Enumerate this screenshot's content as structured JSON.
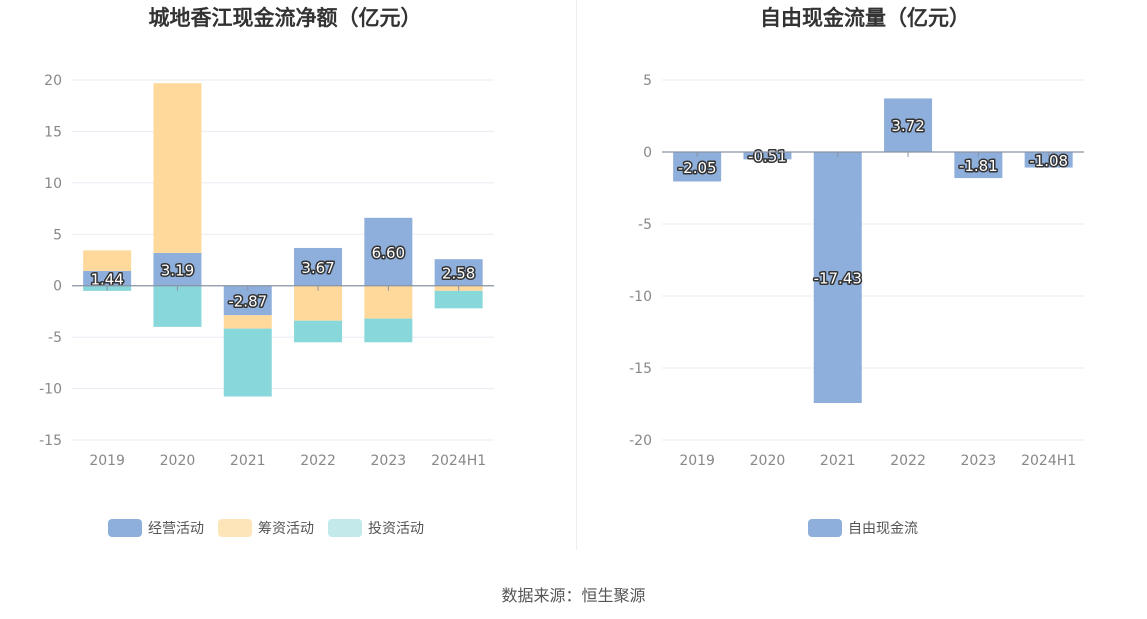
{
  "chart_data": [
    {
      "type": "bar",
      "stacked": true,
      "title": "城地香江现金流净额（亿元）",
      "categories": [
        "2019",
        "2020",
        "2021",
        "2022",
        "2023",
        "2024H1"
      ],
      "ylim": [
        -15,
        20
      ],
      "yticks": [
        "20",
        "15",
        "10",
        "5",
        "0",
        "-5",
        "-10",
        "-15"
      ],
      "series": [
        {
          "name": "经营活动",
          "color": "#8eaedb",
          "values": [
            1.44,
            3.19,
            -2.87,
            3.67,
            6.6,
            2.58
          ]
        },
        {
          "name": "筹资活动",
          "color": "#fed99b",
          "values": [
            2.0,
            16.5,
            -1.3,
            -3.4,
            -3.2,
            -0.5
          ]
        },
        {
          "name": "投资活动",
          "color": "#88d7db",
          "values": [
            -0.5,
            -4.0,
            -6.6,
            -2.1,
            -2.3,
            -1.7
          ]
        }
      ],
      "data_labels": [
        "1.44",
        "3.19",
        "-2.87",
        "3.67",
        "6.60",
        "2.58"
      ]
    },
    {
      "type": "bar",
      "title": "自由现金流量（亿元）",
      "categories": [
        "2019",
        "2020",
        "2021",
        "2022",
        "2023",
        "2024H1"
      ],
      "ylim": [
        -20,
        5
      ],
      "yticks": [
        "5",
        "0",
        "-5",
        "-10",
        "-15",
        "-20"
      ],
      "series": [
        {
          "name": "自由现金流",
          "color": "#8eaedb",
          "values": [
            -2.05,
            -0.51,
            -17.43,
            3.72,
            -1.81,
            -1.08
          ]
        }
      ],
      "data_labels": [
        "-2.05",
        "-0.51",
        "-17.43",
        "3.72",
        "-1.81",
        "-1.08"
      ]
    }
  ],
  "legend1": [
    {
      "label": "经营活动",
      "color": "#8eaedb"
    },
    {
      "label": "筹资活动",
      "color": "#fed99b"
    },
    {
      "label": "投资活动",
      "color": "#c3e9eb"
    }
  ],
  "legend2": [
    {
      "label": "自由现金流",
      "color": "#8eaedb"
    }
  ],
  "source": "数据来源：恒生聚源"
}
